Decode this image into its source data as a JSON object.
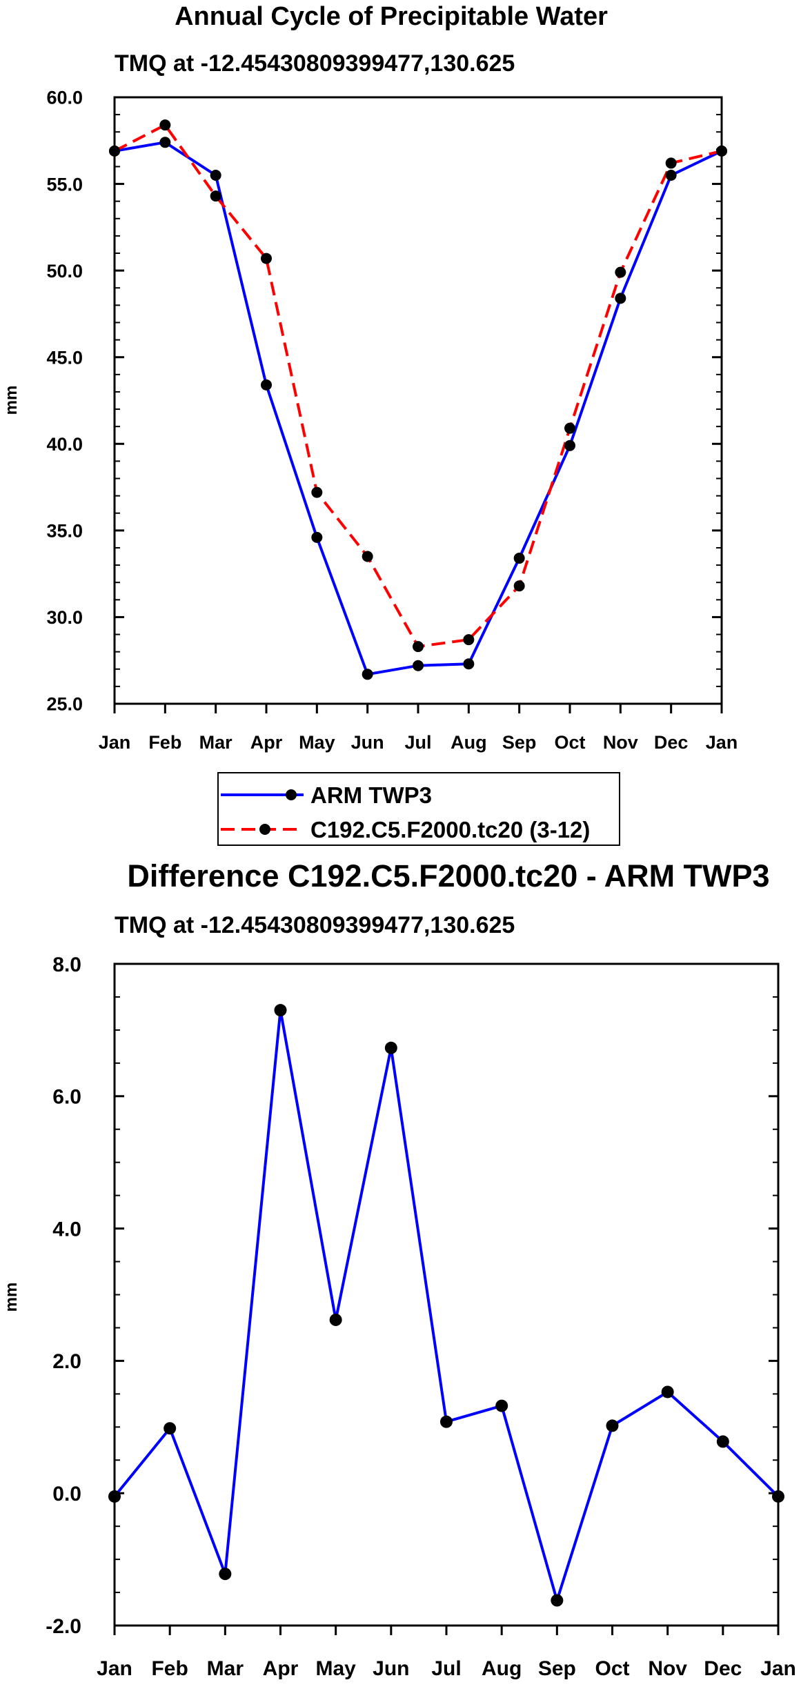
{
  "chart_data": [
    {
      "type": "line",
      "title": "Annual Cycle of Precipitable Water",
      "subtitle": "TMQ at -12.45430809399477,130.625",
      "xlabel": "",
      "ylabel": "mm",
      "categories": [
        "Jan",
        "Feb",
        "Mar",
        "Apr",
        "May",
        "Jun",
        "Jul",
        "Aug",
        "Sep",
        "Oct",
        "Nov",
        "Dec",
        "Jan"
      ],
      "ylim": [
        25.0,
        60.0
      ],
      "yticks": [
        "25.0",
        "30.0",
        "35.0",
        "40.0",
        "45.0",
        "50.0",
        "55.0",
        "60.0"
      ],
      "grid": false,
      "legend_position": "below",
      "series": [
        {
          "name": "ARM TWP3",
          "color": "#0000ff",
          "dash": "solid",
          "marker": "filled-circle",
          "values": [
            56.9,
            57.4,
            55.5,
            43.4,
            34.6,
            26.7,
            27.2,
            27.3,
            33.4,
            39.9,
            48.4,
            55.5,
            56.9
          ]
        },
        {
          "name": "C192.C5.F2000.tc20 (3-12)",
          "color": "#ff0000",
          "dash": "dashed",
          "marker": "filled-circle",
          "values": [
            56.9,
            58.4,
            54.3,
            50.7,
            37.2,
            33.5,
            28.3,
            28.7,
            31.8,
            40.9,
            49.9,
            56.2,
            56.9
          ]
        }
      ]
    },
    {
      "type": "line",
      "title": "Difference C192.C5.F2000.tc20 - ARM TWP3",
      "subtitle": "TMQ at -12.45430809399477,130.625",
      "xlabel": "",
      "ylabel": "mm",
      "categories": [
        "Jan",
        "Feb",
        "Mar",
        "Apr",
        "May",
        "Jun",
        "Jul",
        "Aug",
        "Sep",
        "Oct",
        "Nov",
        "Dec",
        "Jan"
      ],
      "ylim": [
        -2.0,
        8.0
      ],
      "yticks": [
        "-2.0",
        "0.0",
        "2.0",
        "4.0",
        "6.0",
        "8.0"
      ],
      "grid": false,
      "series": [
        {
          "name": "Difference",
          "color": "#0000ff",
          "dash": "solid",
          "marker": "filled-circle",
          "values": [
            -0.05,
            0.98,
            -1.22,
            7.3,
            2.62,
            6.73,
            1.08,
            1.32,
            -1.62,
            1.02,
            1.53,
            0.78,
            -0.05
          ]
        }
      ]
    }
  ]
}
